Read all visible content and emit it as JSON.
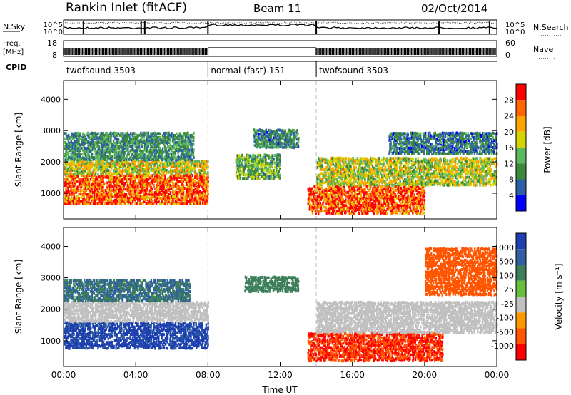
{
  "header": {
    "station": "Rankin Inlet (fitACF)",
    "beam": "Beam 11",
    "date": "02/Oct/2014"
  },
  "noise_panel": {
    "left_label": "N.Sky",
    "left_ticks": [
      "10^5",
      "10^0"
    ],
    "right_ticks": [
      "10^5",
      "10^0"
    ],
    "right_label": "N.Search"
  },
  "freq_panel": {
    "left_label_line1": "Freq.",
    "left_label_line2": "[MHz]",
    "left_ticks": [
      "18",
      "8"
    ],
    "right_ticks": [
      "60",
      "0"
    ],
    "right_label": "Nave"
  },
  "cpid_panel": {
    "label": "CPID",
    "segments": [
      {
        "name": "twofsound 3503",
        "start_hr": 0,
        "end_hr": 8
      },
      {
        "name": "normal (fast) 151",
        "start_hr": 8,
        "end_hr": 14
      },
      {
        "name": "twofsound 3503",
        "start_hr": 14,
        "end_hr": 24
      }
    ]
  },
  "x_axis": {
    "label": "Time UT",
    "ticks": [
      "00:00",
      "04:00",
      "08:00",
      "12:00",
      "16:00",
      "20:00",
      "00:00"
    ]
  },
  "colors": {
    "power": [
      "#0000ff",
      "#2c5fa8",
      "#3a8a3a",
      "#5cb85c",
      "#d4d400",
      "#ffa500",
      "#ff6600",
      "#ff0000"
    ],
    "velocity": [
      "#1d3fb0",
      "#2f5fa0",
      "#3c7f5a",
      "#66c040",
      "#c0c0c0",
      "#ff9900",
      "#ff5500",
      "#ff0000"
    ]
  },
  "chart_data": [
    {
      "type": "heatmap",
      "name": "power",
      "ylabel": "Slant Range [km]",
      "ylim": [
        180,
        4600
      ],
      "yticks": [
        "1000",
        "2000",
        "3000",
        "4000"
      ],
      "xlim_hours": [
        0,
        24
      ],
      "colorbar": {
        "label": "Power [dB]",
        "ticks": [
          "28",
          "24",
          "20",
          "16",
          "12",
          "8",
          "4"
        ],
        "range": [
          0,
          32
        ]
      },
      "regions": [
        {
          "t0": 0,
          "t1": 8,
          "r0": 700,
          "r1": 1650,
          "level": 27
        },
        {
          "t0": 0,
          "t1": 8,
          "r0": 1650,
          "r1": 2100,
          "level": 18
        },
        {
          "t0": 0,
          "t1": 7.2,
          "r0": 2100,
          "r1": 3000,
          "level": 10
        },
        {
          "t0": 9.5,
          "t1": 12,
          "r0": 1500,
          "r1": 2300,
          "level": 13
        },
        {
          "t0": 10.5,
          "t1": 13,
          "r0": 2500,
          "r1": 3100,
          "level": 9
        },
        {
          "t0": 13.5,
          "t1": 20,
          "r0": 400,
          "r1": 1300,
          "level": 28
        },
        {
          "t0": 14,
          "t1": 24,
          "r0": 1300,
          "r1": 2200,
          "level": 17
        },
        {
          "t0": 18,
          "t1": 24,
          "r0": 2300,
          "r1": 3000,
          "level": 8
        }
      ]
    },
    {
      "type": "heatmap",
      "name": "velocity",
      "ylabel": "Slant Range [km]",
      "ylim": [
        180,
        4600
      ],
      "yticks": [
        "1000",
        "2000",
        "3000",
        "4000"
      ],
      "xlim_hours": [
        0,
        24
      ],
      "colorbar": {
        "label": "Velocity [m s⁻¹]",
        "ticks": [
          "1000",
          "500",
          "100",
          "25",
          "-25",
          "-100",
          "-500",
          "-1000"
        ],
        "range": [
          -1200,
          1200
        ]
      },
      "regions": [
        {
          "t0": 0,
          "t1": 8,
          "r0": 800,
          "r1": 1650,
          "level": 700
        },
        {
          "t0": 0,
          "t1": 8,
          "r0": 1650,
          "r1": 2300,
          "level": 0
        },
        {
          "t0": 0,
          "t1": 7,
          "r0": 2300,
          "r1": 3000,
          "level": 300
        },
        {
          "t0": 10,
          "t1": 13,
          "r0": 2600,
          "r1": 3100,
          "level": 200
        },
        {
          "t0": 13.5,
          "t1": 21,
          "r0": 400,
          "r1": 1300,
          "level": -300
        },
        {
          "t0": 14,
          "t1": 24,
          "r0": 1300,
          "r1": 2300,
          "level": 0
        },
        {
          "t0": 20,
          "t1": 24,
          "r0": 2500,
          "r1": 4000,
          "level": -200
        }
      ]
    }
  ]
}
